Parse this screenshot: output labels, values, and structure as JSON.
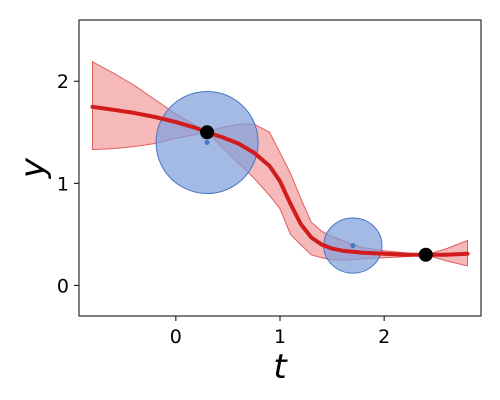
{
  "chart_data": {
    "type": "line",
    "title": "",
    "xlabel": "t",
    "ylabel": "y",
    "xlim": [
      -0.93,
      2.93
    ],
    "ylim": [
      -0.3,
      2.6
    ],
    "xticks": [
      0,
      1,
      2
    ],
    "yticks": [
      0,
      1,
      2
    ],
    "xtick_labels": [
      "0",
      "1",
      "2"
    ],
    "ytick_labels": [
      "0",
      "1",
      "2"
    ],
    "grid": false,
    "legend": "none",
    "colors": {
      "mean_line": "#d01c1c",
      "band_fill": "#ef8a8a",
      "band_edge": "#e06060",
      "ellipse_fill": "#7f9fdb",
      "ellipse_edge": "#4a74c4",
      "point": "#000000",
      "ellipse_center": "#4a74c4"
    },
    "series": [
      {
        "type": "line",
        "x": [
          -0.8,
          -0.6,
          -0.4,
          -0.2,
          0.0,
          0.2,
          0.3,
          0.45,
          0.6,
          0.75,
          0.9,
          1.0,
          1.1,
          1.2,
          1.3,
          1.4,
          1.5,
          1.6,
          1.7,
          1.8,
          2.0,
          2.2,
          2.4,
          2.6,
          2.8
        ],
        "y": [
          1.75,
          1.72,
          1.69,
          1.65,
          1.6,
          1.54,
          1.5,
          1.45,
          1.39,
          1.3,
          1.17,
          1.02,
          0.8,
          0.6,
          0.47,
          0.4,
          0.36,
          0.34,
          0.33,
          0.32,
          0.31,
          0.3,
          0.3,
          0.3,
          0.31
        ]
      },
      {
        "type": "area",
        "x": [
          -0.8,
          -0.6,
          -0.4,
          -0.2,
          0.0,
          0.2,
          0.3,
          0.45,
          0.6,
          0.75,
          0.9,
          1.0,
          1.1,
          1.2,
          1.3,
          1.4,
          1.5,
          1.6,
          1.7,
          1.8,
          2.0,
          2.2,
          2.4,
          2.6,
          2.8
        ],
        "upper": [
          2.19,
          2.08,
          1.96,
          1.82,
          1.68,
          1.56,
          1.5,
          1.55,
          1.58,
          1.58,
          1.5,
          1.3,
          1.1,
          0.85,
          0.62,
          0.53,
          0.48,
          0.44,
          0.4,
          0.37,
          0.34,
          0.32,
          0.3,
          0.36,
          0.44
        ],
        "lower": [
          1.33,
          1.34,
          1.36,
          1.39,
          1.44,
          1.48,
          1.5,
          1.35,
          1.2,
          1.05,
          0.88,
          0.75,
          0.5,
          0.4,
          0.3,
          0.27,
          0.25,
          0.25,
          0.25,
          0.26,
          0.27,
          0.28,
          0.3,
          0.24,
          0.19
        ]
      }
    ],
    "points": [
      {
        "x": 0.3,
        "y": 1.5
      },
      {
        "x": 2.4,
        "y": 0.3
      }
    ],
    "ellipses": [
      {
        "cx": 0.3,
        "cy": 1.4,
        "rx": 0.49,
        "ry": 0.5,
        "angle_deg": -32
      },
      {
        "cx": 1.7,
        "cy": 0.39,
        "rx": 0.28,
        "ry": 0.27,
        "angle_deg": 0
      }
    ]
  }
}
